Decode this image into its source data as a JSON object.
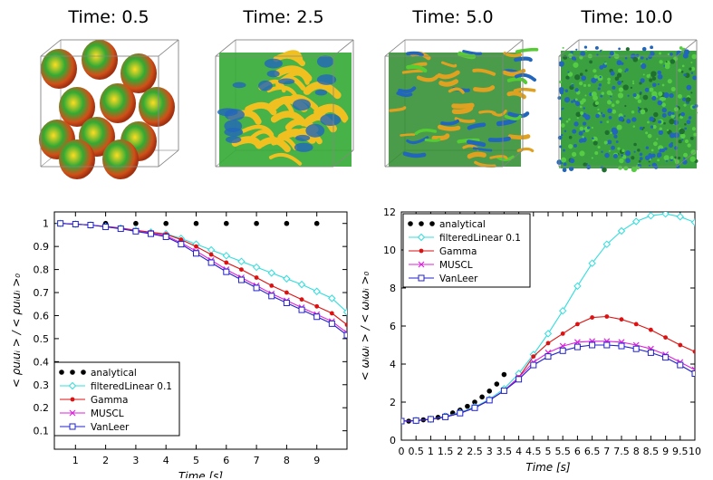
{
  "snapshots": [
    {
      "title": "Time: 0.5",
      "variant": "blobs-large"
    },
    {
      "title": "Time: 2.5",
      "variant": "sheets"
    },
    {
      "title": "Time: 5.0",
      "variant": "tubes"
    },
    {
      "title": "Time: 10.0",
      "variant": "turbulence"
    }
  ],
  "colors": {
    "analytical": "#000000",
    "filteredLinear": "#33dddd",
    "gamma": "#dd1111",
    "muscl": "#dd22dd",
    "vanleer": "#2222cc",
    "iso_green": "#33aa33",
    "iso_blue": "#2266bb",
    "iso_red": "#dd3311"
  },
  "chart_data": [
    {
      "type": "line",
      "title": "",
      "xlabel": "Time [s]",
      "ylabel": "< ρuᵢuᵢ > / < ρuᵢuᵢ >₀",
      "xlim": [
        0.3,
        10
      ],
      "ylim": [
        0.02,
        1.05
      ],
      "xticks": [
        "1",
        "2",
        "3",
        "4",
        "5",
        "6",
        "7",
        "8",
        "9"
      ],
      "yticks": [
        "0.1",
        "0.2",
        "0.3",
        "0.4",
        "0.5",
        "0.6",
        "0.7",
        "0.8",
        "0.9",
        "1"
      ],
      "legend_position": "bottom-left",
      "series": [
        {
          "name": "analytical",
          "marker": "dot",
          "color_key": "analytical",
          "line": false,
          "x": [
            0.5,
            1,
            2,
            3,
            4,
            5,
            6,
            7,
            8,
            9
          ],
          "y": [
            1.0,
            1.0,
            1.0,
            1.0,
            1.0,
            1.0,
            1.0,
            1.0,
            1.0,
            1.0
          ]
        },
        {
          "name": "filteredLinear 0.1",
          "marker": "diamond",
          "color_key": "filteredLinear",
          "line": true,
          "x": [
            0.5,
            1,
            1.5,
            2,
            2.5,
            3,
            3.5,
            4,
            4.5,
            5,
            5.5,
            6,
            6.5,
            7,
            7.5,
            8,
            8.5,
            9,
            9.5,
            10
          ],
          "y": [
            1.0,
            0.997,
            0.993,
            0.987,
            0.98,
            0.97,
            0.962,
            0.955,
            0.935,
            0.91,
            0.885,
            0.86,
            0.835,
            0.81,
            0.785,
            0.76,
            0.735,
            0.705,
            0.675,
            0.615
          ]
        },
        {
          "name": "Gamma",
          "marker": "dot-line",
          "color_key": "gamma",
          "line": true,
          "x": [
            0.5,
            1,
            1.5,
            2,
            2.5,
            3,
            3.5,
            4,
            4.5,
            5,
            5.5,
            6,
            6.5,
            7,
            7.5,
            8,
            8.5,
            9,
            9.5,
            10
          ],
          "y": [
            1.0,
            0.997,
            0.993,
            0.987,
            0.98,
            0.97,
            0.962,
            0.953,
            0.93,
            0.9,
            0.865,
            0.83,
            0.8,
            0.765,
            0.73,
            0.7,
            0.67,
            0.64,
            0.61,
            0.56
          ]
        },
        {
          "name": "MUSCL",
          "marker": "x",
          "color_key": "muscl",
          "line": true,
          "x": [
            0.5,
            1,
            1.5,
            2,
            2.5,
            3,
            3.5,
            4,
            4.5,
            5,
            5.5,
            6,
            6.5,
            7,
            7.5,
            8,
            8.5,
            9,
            9.5,
            10
          ],
          "y": [
            1.0,
            0.997,
            0.993,
            0.986,
            0.978,
            0.968,
            0.958,
            0.947,
            0.915,
            0.88,
            0.84,
            0.8,
            0.765,
            0.73,
            0.695,
            0.665,
            0.635,
            0.605,
            0.575,
            0.525
          ]
        },
        {
          "name": "VanLeer",
          "marker": "square",
          "color_key": "vanleer",
          "line": true,
          "x": [
            0.5,
            1,
            1.5,
            2,
            2.5,
            3,
            3.5,
            4,
            4.5,
            5,
            5.5,
            6,
            6.5,
            7,
            7.5,
            8,
            8.5,
            9,
            9.5,
            10
          ],
          "y": [
            1.0,
            0.997,
            0.993,
            0.985,
            0.977,
            0.966,
            0.955,
            0.942,
            0.91,
            0.87,
            0.83,
            0.79,
            0.755,
            0.72,
            0.685,
            0.655,
            0.625,
            0.595,
            0.565,
            0.515
          ]
        }
      ]
    },
    {
      "type": "line",
      "title": "",
      "xlabel": "Time [s]",
      "ylabel": "< ωᵢωᵢ > / < ωᵢωᵢ >₀",
      "xlim": [
        0,
        10
      ],
      "ylim": [
        0,
        12
      ],
      "xticks": [
        "0",
        "0.5",
        "1",
        "1.5",
        "2",
        "2.5",
        "3",
        "3.5",
        "4",
        "4.5",
        "5",
        "5.5",
        "6",
        "6.5",
        "7",
        "7.5",
        "8",
        "8.5",
        "9",
        "9.5",
        "10"
      ],
      "yticks": [
        "0",
        "2",
        "4",
        "6",
        "8",
        "10",
        "12"
      ],
      "legend_position": "top-left",
      "series": [
        {
          "name": "analytical",
          "marker": "dot",
          "color_key": "analytical",
          "line": false,
          "x": [
            0,
            0.25,
            0.5,
            0.75,
            1,
            1.25,
            1.5,
            1.75,
            2,
            2.25,
            2.5,
            2.75,
            3,
            3.25,
            3.5
          ],
          "y": [
            1.0,
            1.0,
            1.03,
            1.07,
            1.13,
            1.2,
            1.3,
            1.43,
            1.58,
            1.78,
            2.0,
            2.27,
            2.58,
            2.95,
            3.45
          ]
        },
        {
          "name": "filteredLinear 0.1",
          "marker": "diamond",
          "color_key": "filteredLinear",
          "line": true,
          "x": [
            0,
            0.5,
            1,
            1.5,
            2,
            2.5,
            3,
            3.5,
            4,
            4.5,
            5,
            5.5,
            6,
            6.5,
            7,
            7.5,
            8,
            8.5,
            9,
            9.5,
            10
          ],
          "y": [
            1.0,
            1.03,
            1.1,
            1.25,
            1.45,
            1.75,
            2.15,
            2.7,
            3.5,
            4.5,
            5.6,
            6.8,
            8.1,
            9.3,
            10.3,
            11.0,
            11.5,
            11.8,
            11.9,
            11.75,
            11.45
          ]
        },
        {
          "name": "Gamma",
          "marker": "dot-line",
          "color_key": "gamma",
          "line": true,
          "x": [
            0,
            0.5,
            1,
            1.5,
            2,
            2.5,
            3,
            3.5,
            4,
            4.5,
            5,
            5.5,
            6,
            6.5,
            7,
            7.5,
            8,
            8.5,
            9,
            9.5,
            10
          ],
          "y": [
            1.0,
            1.03,
            1.1,
            1.22,
            1.42,
            1.7,
            2.1,
            2.6,
            3.3,
            4.4,
            5.1,
            5.6,
            6.1,
            6.45,
            6.5,
            6.35,
            6.1,
            5.8,
            5.4,
            5.0,
            4.65
          ]
        },
        {
          "name": "MUSCL",
          "marker": "x",
          "color_key": "muscl",
          "line": true,
          "x": [
            0,
            0.5,
            1,
            1.5,
            2,
            2.5,
            3,
            3.5,
            4,
            4.5,
            5,
            5.5,
            6,
            6.5,
            7,
            7.5,
            8,
            8.5,
            9,
            9.5,
            10
          ],
          "y": [
            1.0,
            1.03,
            1.1,
            1.22,
            1.42,
            1.7,
            2.1,
            2.6,
            3.3,
            4.1,
            4.6,
            4.95,
            5.15,
            5.2,
            5.2,
            5.15,
            5.0,
            4.8,
            4.5,
            4.1,
            3.7
          ]
        },
        {
          "name": "VanLeer",
          "marker": "square",
          "color_key": "vanleer",
          "line": true,
          "x": [
            0,
            0.5,
            1,
            1.5,
            2,
            2.5,
            3,
            3.5,
            4,
            4.5,
            5,
            5.5,
            6,
            6.5,
            7,
            7.5,
            8,
            8.5,
            9,
            9.5,
            10
          ],
          "y": [
            1.0,
            1.03,
            1.1,
            1.22,
            1.42,
            1.7,
            2.1,
            2.6,
            3.2,
            3.95,
            4.4,
            4.7,
            4.9,
            5.0,
            5.0,
            4.95,
            4.8,
            4.6,
            4.35,
            3.95,
            3.5
          ]
        }
      ]
    }
  ]
}
